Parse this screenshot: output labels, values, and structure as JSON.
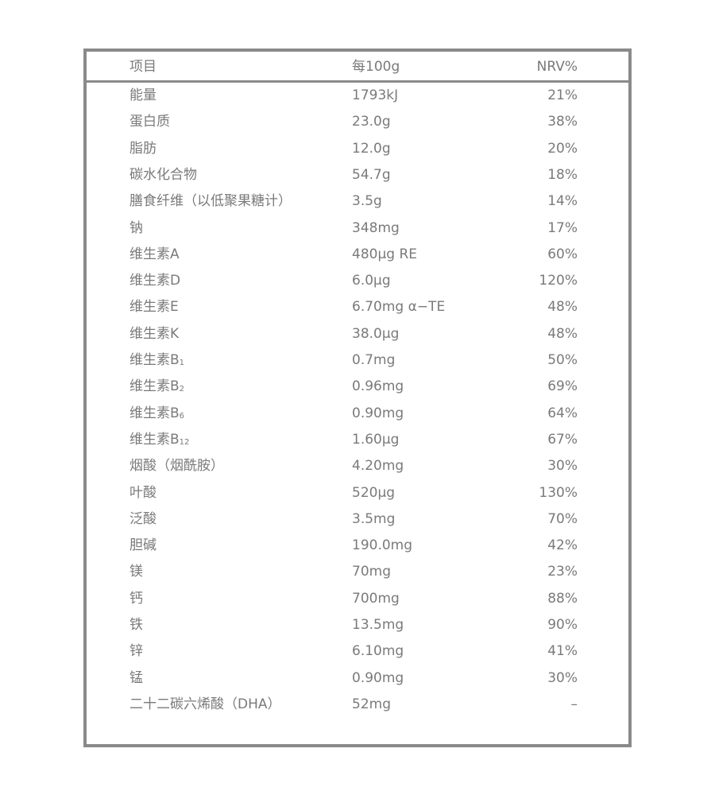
{
  "header": {
    "item": "项目",
    "per100g": "每100g",
    "nrv": "NRV%"
  },
  "rows": [
    {
      "name": "能量",
      "sub": "",
      "value": "1793kJ",
      "nrv": "21%"
    },
    {
      "name": "蛋白质",
      "sub": "",
      "value": "23.0g",
      "nrv": "38%"
    },
    {
      "name": "脂肪",
      "sub": "",
      "value": "12.0g",
      "nrv": "20%"
    },
    {
      "name": "碳水化合物",
      "sub": "",
      "value": "54.7g",
      "nrv": "18%"
    },
    {
      "name": "膳食纤维（以低聚果糖计）",
      "sub": "",
      "value": "3.5g",
      "nrv": "14%"
    },
    {
      "name": "钠",
      "sub": "",
      "value": "348mg",
      "nrv": "17%"
    },
    {
      "name": "维生素A",
      "sub": "",
      "value": "480µg RE",
      "nrv": "60%"
    },
    {
      "name": "维生素D",
      "sub": "",
      "value": "6.0µg",
      "nrv": "120%"
    },
    {
      "name": "维生素E",
      "sub": "",
      "value": "6.70mg α−TE",
      "nrv": "48%"
    },
    {
      "name": "维生素K",
      "sub": "",
      "value": "38.0µg",
      "nrv": "48%"
    },
    {
      "name": "维生素B",
      "sub": "1",
      "value": "0.7mg",
      "nrv": "50%"
    },
    {
      "name": "维生素B",
      "sub": "2",
      "value": "0.96mg",
      "nrv": "69%"
    },
    {
      "name": "维生素B",
      "sub": "6",
      "value": "0.90mg",
      "nrv": "64%"
    },
    {
      "name": "维生素B",
      "sub": "12",
      "value": "1.60µg",
      "nrv": "67%"
    },
    {
      "name": "烟酸（烟酰胺）",
      "sub": "",
      "value": "4.20mg",
      "nrv": "30%"
    },
    {
      "name": "叶酸",
      "sub": "",
      "value": "520µg",
      "nrv": "130%"
    },
    {
      "name": "泛酸",
      "sub": "",
      "value": "3.5mg",
      "nrv": "70%"
    },
    {
      "name": "胆碱",
      "sub": "",
      "value": "190.0mg",
      "nrv": "42%"
    },
    {
      "name": "镁",
      "sub": "",
      "value": "70mg",
      "nrv": "23%"
    },
    {
      "name": "钙",
      "sub": "",
      "value": "700mg",
      "nrv": "88%"
    },
    {
      "name": "铁",
      "sub": "",
      "value": "13.5mg",
      "nrv": "90%"
    },
    {
      "name": "锌",
      "sub": "",
      "value": "6.10mg",
      "nrv": "41%"
    },
    {
      "name": "锰",
      "sub": "",
      "value": "0.90mg",
      "nrv": "30%"
    },
    {
      "name": "二十二碳六烯酸（DHA）",
      "sub": "",
      "value": "52mg",
      "nrv": "–"
    }
  ]
}
